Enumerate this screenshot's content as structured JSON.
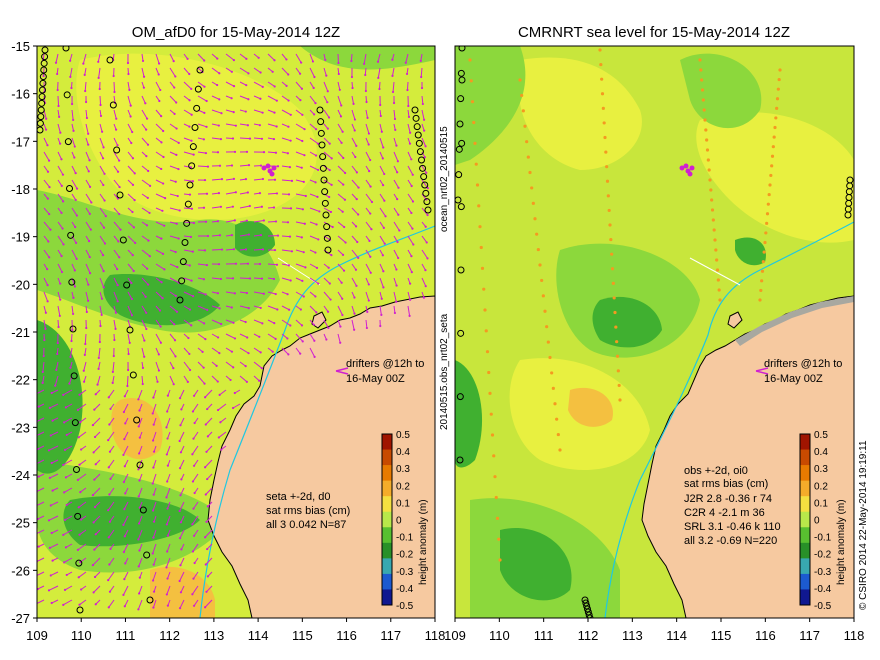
{
  "left_panel": {
    "title": "OM_afD0 for 15-May-2014 12Z",
    "drifter_note": [
      "drifters @12h to",
      "16-May 00Z"
    ],
    "stats": [
      "seta +-2d, d0",
      "sat rms bias (cm)",
      "all 3 0.042 N=87"
    ]
  },
  "right_panel": {
    "title": "CMRNRT sea level  for 15-May-2014 12Z",
    "drifter_note": [
      "drifters @12h to",
      "16-May 00Z"
    ],
    "stats": [
      "obs +-2d, oi0",
      "sat rms bias (cm)",
      "J2R   2.8 -0.36 r 74",
      "C2R   4 -2.1 m 36",
      "SRL   3.1 -0.46 k 110",
      "all   3.2 -0.69 N=220"
    ]
  },
  "left_vertical_label": "20140515.obs_nrt02_seta",
  "left_vertical_label_top": "ocean_nrt02_20140515",
  "right_vertical_label": "© CSIRO 2014  22-May-2014 19:19:11",
  "colorbar": {
    "title": "height anomaly (m)",
    "ticks": [
      "0.5",
      "0.4",
      "0.3",
      "0.2",
      "0.1",
      "0",
      "-0.1",
      "-0.2",
      "-0.3",
      "-0.4",
      "-0.5"
    ],
    "colors": [
      "#a01400",
      "#c84a00",
      "#e87a00",
      "#f4ac2a",
      "#f4e040",
      "#b8e84a",
      "#58c030",
      "#289028",
      "#38a8b0",
      "#1c5ad0",
      "#101890"
    ]
  },
  "axes": {
    "x_ticks": [
      "109",
      "110",
      "111",
      "112",
      "113",
      "114",
      "115",
      "116",
      "117",
      "118"
    ],
    "y_ticks": [
      "-15",
      "-16",
      "-17",
      "-18",
      "-19",
      "-20",
      "-21",
      "-22",
      "-23",
      "-24",
      "-25",
      "-26",
      "-27"
    ],
    "lon_range": [
      109,
      118
    ],
    "lat_range": [
      -27,
      -15
    ]
  },
  "colors": {
    "land": "#f6c9a0",
    "velocity_arrows": "#d020d0",
    "track_line": "#20c8e0",
    "coast": "#000000"
  }
}
